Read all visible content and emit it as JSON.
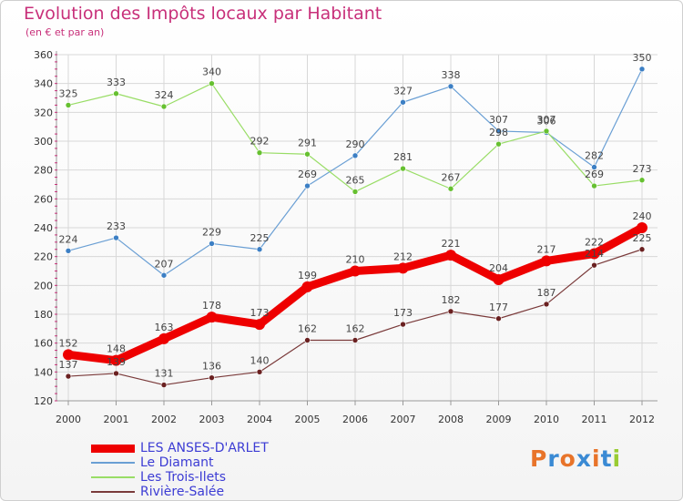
{
  "header": {
    "title": "Evolution des Impôts locaux par Habitant",
    "subtitle": "(en € et par an)"
  },
  "colors": {
    "title": "#c8307a",
    "grid": "#d8d8d8",
    "axis_minor_ticks": "#c8307a",
    "legend_text": "#3c3cd4"
  },
  "chart_data": {
    "type": "line",
    "title": "Evolution des Impôts locaux par Habitant",
    "subtitle": "(en € et par an)",
    "xlabel": "",
    "ylabel": "",
    "x": [
      "2000",
      "2001",
      "2002",
      "2003",
      "2004",
      "2005",
      "2006",
      "2007",
      "2008",
      "2009",
      "2010",
      "2011",
      "2012"
    ],
    "ylim": [
      120,
      360
    ],
    "yticks": [
      120,
      140,
      160,
      180,
      200,
      220,
      240,
      260,
      280,
      300,
      320,
      340,
      360
    ],
    "grid": true,
    "legend_position": "bottom-left",
    "series": [
      {
        "name": "LES ANSES-D'ARLET",
        "color": "#ee0000",
        "point_color": "#ee0000",
        "emphasis": "bold",
        "values": [
          152,
          148,
          163,
          178,
          173,
          199,
          210,
          212,
          221,
          204,
          217,
          222,
          240
        ]
      },
      {
        "name": "Le Diamant",
        "color": "#6a9fd4",
        "point_color": "#3c7fc4",
        "emphasis": "normal",
        "values": [
          224,
          233,
          207,
          229,
          225,
          269,
          290,
          327,
          338,
          307,
          306,
          282,
          350
        ]
      },
      {
        "name": "Les Trois-Ilets",
        "color": "#99dd66",
        "point_color": "#66c030",
        "emphasis": "normal",
        "values": [
          325,
          333,
          324,
          340,
          292,
          291,
          265,
          281,
          267,
          298,
          307,
          269,
          273
        ]
      },
      {
        "name": "Rivière-Salée",
        "color": "#7a3a3a",
        "point_color": "#6a2020",
        "emphasis": "normal",
        "values": [
          137,
          139,
          131,
          136,
          140,
          162,
          162,
          173,
          182,
          177,
          187,
          214,
          225
        ]
      }
    ]
  },
  "branding": {
    "logo_letters": [
      {
        "char": "P",
        "color": "#e8742a"
      },
      {
        "char": "r",
        "color": "#3a8ad4"
      },
      {
        "char": "o",
        "color": "#e8742a"
      },
      {
        "char": "x",
        "color": "#3a8ad4"
      },
      {
        "char": "i",
        "color": "#e8742a"
      },
      {
        "char": "t",
        "color": "#3a8ad4"
      },
      {
        "char": "i",
        "color": "#99cc33"
      }
    ]
  }
}
